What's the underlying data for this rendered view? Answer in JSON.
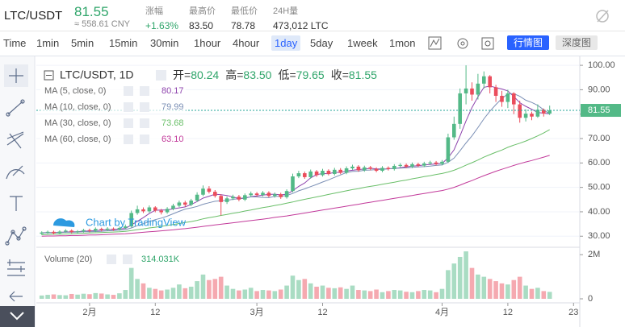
{
  "header": {
    "pair": "LTC/USDT",
    "price": "81.55",
    "cny": "≈ 558.61 CNY",
    "stats": [
      {
        "label": "涨幅",
        "value": "+1.63%"
      },
      {
        "label": "最高价",
        "value": "83.50"
      },
      {
        "label": "最低价",
        "value": "78.78"
      },
      {
        "label": "24H量",
        "value": "473,012 LTC"
      }
    ]
  },
  "toolbar": {
    "intervals": [
      "Time",
      "1min",
      "5min",
      "15min",
      "30min",
      "1hour",
      "4hour",
      "1day",
      "5day",
      "1week",
      "1mon"
    ],
    "tabs": [
      "行情图",
      "深度图"
    ]
  },
  "legend": {
    "symbol": "LTC/USDT, 1D",
    "ohlc": [
      {
        "label": "开=",
        "value": "80.24"
      },
      {
        "label": "高=",
        "value": "83.50"
      },
      {
        "label": "低=",
        "value": "79.65"
      },
      {
        "label": "收=",
        "value": "81.55"
      }
    ]
  },
  "watermark": "Chart by TradingView",
  "chart_data": {
    "type": "candlestick",
    "categories": [
      null,
      null,
      null,
      null,
      null,
      null,
      null,
      null,
      "2月",
      null,
      null,
      null,
      null,
      null,
      null,
      null,
      null,
      null,
      null,
      "12",
      null,
      null,
      null,
      null,
      null,
      null,
      null,
      null,
      null,
      null,
      null,
      null,
      null,
      null,
      null,
      null,
      "3月",
      null,
      null,
      null,
      null,
      null,
      null,
      null,
      null,
      null,
      null,
      "12",
      null,
      null,
      null,
      null,
      null,
      null,
      null,
      null,
      null,
      null,
      null,
      null,
      null,
      null,
      null,
      null,
      null,
      null,
      null,
      "4月",
      null,
      null,
      null,
      null,
      null,
      null,
      null,
      null,
      null,
      null,
      "12",
      null,
      null,
      null,
      null,
      null,
      null,
      null,
      null,
      null,
      null,
      "23"
    ],
    "open": [
      31.0,
      31.5,
      31.8,
      31.2,
      31.9,
      32.3,
      31.7,
      32.0,
      32.5,
      32.2,
      33.0,
      32.6,
      33.1,
      32.8,
      33.4,
      34.0,
      39.5,
      41.0,
      40.2,
      41.8,
      40.5,
      39.8,
      41.2,
      42.5,
      43.8,
      42.9,
      44.6,
      47.0,
      49.5,
      48.2,
      46.5,
      44.0,
      45.5,
      46.2,
      45.0,
      46.8,
      47.5,
      46.9,
      47.8,
      46.5,
      47.2,
      46.0,
      48.5,
      54.5,
      55.8,
      54.2,
      56.5,
      55.0,
      56.8,
      55.5,
      57.2,
      56.0,
      57.8,
      58.5,
      57.0,
      58.2,
      57.6,
      56.8,
      58.0,
      57.5,
      58.8,
      59.2,
      58.5,
      59.5,
      58.9,
      59.8,
      60.2,
      59.6,
      60.5,
      70.5,
      76.0,
      88.5,
      90.5,
      88.0,
      92.5,
      95.5,
      91.0,
      87.5,
      85.0,
      88.5,
      84.0,
      78.5,
      80.2,
      79.0,
      81.8,
      80.24,
      null,
      null,
      null,
      null
    ],
    "high": [
      32.0,
      32.3,
      32.3,
      32.4,
      32.9,
      32.8,
      32.5,
      33.0,
      33.1,
      33.6,
      33.5,
      33.7,
      33.6,
      34.0,
      34.8,
      40.5,
      42.5,
      41.8,
      42.6,
      42.3,
      41.2,
      41.9,
      43.3,
      44.6,
      44.5,
      45.3,
      48.0,
      50.8,
      50.5,
      48.9,
      47.2,
      46.3,
      47.0,
      46.9,
      47.5,
      48.3,
      48.1,
      48.5,
      48.4,
      47.9,
      47.8,
      49.2,
      55.6,
      56.8,
      56.5,
      57.3,
      57.1,
      57.6,
      57.4,
      58.0,
      57.9,
      58.6,
      59.3,
      59.1,
      58.9,
      58.8,
      58.2,
      58.7,
      58.6,
      59.5,
      59.9,
      59.8,
      60.2,
      60.1,
      60.5,
      60.9,
      60.8,
      61.2,
      72.0,
      79.0,
      90.5,
      100.0,
      93.0,
      96.5,
      97.5,
      96.0,
      92.0,
      89.5,
      90.0,
      89.0,
      85.5,
      82.0,
      81.0,
      84.0,
      82.3,
      83.5,
      null,
      null,
      null,
      null
    ],
    "low": [
      30.5,
      31.0,
      30.7,
      30.8,
      31.4,
      31.2,
      31.1,
      31.5,
      31.6,
      31.7,
      32.0,
      32.1,
      32.2,
      32.3,
      33.0,
      33.6,
      38.8,
      39.5,
      39.6,
      39.8,
      38.9,
      39.2,
      40.6,
      41.9,
      42.1,
      42.3,
      44.0,
      46.4,
      47.5,
      45.8,
      38.5,
      43.2,
      44.8,
      44.3,
      44.4,
      46.1,
      46.2,
      46.3,
      45.9,
      45.8,
      45.3,
      45.4,
      48.0,
      53.8,
      53.5,
      53.6,
      54.3,
      54.4,
      54.9,
      54.9,
      55.4,
      55.4,
      57.2,
      56.4,
      56.4,
      57.0,
      56.2,
      56.2,
      56.9,
      56.9,
      58.2,
      57.9,
      57.9,
      58.3,
      58.3,
      59.2,
      59.0,
      59.0,
      60.0,
      69.5,
      74.0,
      84.0,
      85.5,
      86.0,
      90.5,
      88.5,
      85.0,
      83.0,
      82.5,
      80.0,
      76.5,
      77.0,
      77.5,
      78.5,
      79.0,
      79.65,
      null,
      null,
      null,
      null
    ],
    "close": [
      31.5,
      31.8,
      31.2,
      31.9,
      32.3,
      31.7,
      32.0,
      32.5,
      32.2,
      33.0,
      32.6,
      33.1,
      32.8,
      33.4,
      34.0,
      39.5,
      41.0,
      40.2,
      41.8,
      40.5,
      39.8,
      41.2,
      42.5,
      43.8,
      42.9,
      44.6,
      47.0,
      49.5,
      48.2,
      46.5,
      44.0,
      45.5,
      46.2,
      45.0,
      46.8,
      47.5,
      46.9,
      47.8,
      46.5,
      47.2,
      46.0,
      48.5,
      54.5,
      55.8,
      54.2,
      56.5,
      55.0,
      56.8,
      55.5,
      57.2,
      56.0,
      57.8,
      58.5,
      57.0,
      58.2,
      57.6,
      56.8,
      58.0,
      57.5,
      58.8,
      59.2,
      58.5,
      59.5,
      58.9,
      59.8,
      60.2,
      59.6,
      60.5,
      70.5,
      76.0,
      88.5,
      90.5,
      88.0,
      92.5,
      95.5,
      91.0,
      87.5,
      85.0,
      88.5,
      84.0,
      78.5,
      80.2,
      79.0,
      81.8,
      80.24,
      81.55,
      null,
      null,
      null,
      null
    ],
    "up_color": "#53b987",
    "down_color": "#eb4d5c",
    "ylim": [
      25.8,
      103
    ],
    "yticks": [
      {
        "value": 30,
        "label": "30.00"
      },
      {
        "value": 40,
        "label": "40.00"
      },
      {
        "value": 50,
        "label": "50.00"
      },
      {
        "value": 60,
        "label": "60.00"
      },
      {
        "value": 70,
        "label": "70.00"
      },
      {
        "value": 80,
        "label": "80.00"
      },
      {
        "value": 90,
        "label": "90.00"
      },
      {
        "value": 100,
        "label": "100.00"
      }
    ],
    "grid": true,
    "ma": [
      {
        "name": "MA (5, close, 0)",
        "color": "#8e44ad",
        "last_label": "80.17",
        "values": [
          31.4,
          31.5,
          31.5,
          31.6,
          31.7,
          31.8,
          31.8,
          32.1,
          32.1,
          32.3,
          32.5,
          32.7,
          32.7,
          33.0,
          33.2,
          34.6,
          36.1,
          37.6,
          39.3,
          40.6,
          40.7,
          40.7,
          41.2,
          41.6,
          42.0,
          43.0,
          44.2,
          45.6,
          46.4,
          47.2,
          47.0,
          46.7,
          46.1,
          45.4,
          45.5,
          46.2,
          46.5,
          46.8,
          47.1,
          47.2,
          46.9,
          47.2,
          48.6,
          50.4,
          51.8,
          53.9,
          55.2,
          55.7,
          55.6,
          56.2,
          56.1,
          56.7,
          57.0,
          57.3,
          57.5,
          57.8,
          57.6,
          57.5,
          57.6,
          57.7,
          58.1,
          58.4,
          58.7,
          58.9,
          59.2,
          59.4,
          59.6,
          59.8,
          62.1,
          65.4,
          71.1,
          77.2,
          82.7,
          87.1,
          91.0,
          91.5,
          90.9,
          90.3,
          89.5,
          87.2,
          84.7,
          83.2,
          82.0,
          80.7,
          80.4,
          80.17,
          null,
          null,
          null,
          null
        ]
      },
      {
        "name": "MA (10, close, 0)",
        "color": "#7b8fb5",
        "last_label": "79.99",
        "values": [
          31.3,
          31.4,
          31.4,
          31.5,
          31.6,
          31.6,
          31.7,
          31.8,
          31.8,
          31.9,
          32.0,
          32.2,
          32.3,
          32.5,
          32.7,
          33.4,
          34.3,
          35.1,
          36.0,
          36.8,
          37.4,
          38.2,
          39.2,
          40.2,
          41.1,
          41.6,
          42.2,
          43.1,
          43.7,
          44.3,
          44.5,
          44.7,
          45.1,
          45.4,
          45.8,
          46.1,
          46.1,
          45.9,
          45.8,
          46.3,
          46.4,
          46.7,
          47.5,
          48.6,
          49.4,
          50.3,
          51.2,
          52.2,
          53.1,
          54.1,
          55.1,
          56.1,
          56.5,
          56.6,
          57.0,
          57.1,
          57.3,
          57.4,
          57.6,
          57.8,
          57.9,
          58.0,
          58.2,
          58.4,
          58.5,
          58.7,
          59.0,
          59.2,
          60.3,
          62.0,
          65.0,
          68.2,
          71.1,
          74.5,
          78.1,
          81.2,
          83.9,
          86.4,
          88.3,
          88.4,
          87.3,
          85.7,
          84.8,
          83.6,
          81.8,
          79.99,
          null,
          null,
          null,
          null
        ]
      },
      {
        "name": "MA (30, close, 0)",
        "color": "#6abf69",
        "last_label": "73.68",
        "values": [
          30.6,
          30.7,
          30.8,
          30.8,
          30.9,
          31.0,
          31.1,
          31.2,
          31.3,
          31.4,
          31.5,
          31.6,
          31.7,
          31.8,
          32.0,
          32.3,
          32.7,
          33.0,
          33.4,
          33.7,
          34.0,
          34.4,
          34.8,
          35.2,
          35.6,
          36.0,
          36.5,
          37.1,
          37.6,
          38.0,
          38.5,
          38.9,
          39.4,
          39.8,
          40.3,
          40.7,
          41.2,
          41.7,
          42.1,
          42.6,
          43.0,
          43.5,
          44.0,
          44.6,
          45.1,
          45.6,
          46.1,
          46.6,
          47.1,
          47.6,
          48.1,
          48.6,
          49.1,
          49.5,
          50.0,
          50.4,
          50.8,
          51.3,
          51.7,
          52.1,
          52.6,
          53.0,
          53.5,
          53.9,
          54.4,
          54.8,
          55.3,
          55.7,
          56.3,
          57.0,
          58.0,
          59.1,
          60.1,
          61.2,
          62.4,
          63.4,
          64.4,
          65.3,
          66.4,
          67.3,
          68.1,
          69.0,
          70.0,
          71.1,
          72.3,
          73.68,
          null,
          null,
          null,
          null
        ]
      },
      {
        "name": "MA (60, close, 0)",
        "color": "#c2399a",
        "last_label": "63.10",
        "values": [
          30.0,
          30.1,
          30.1,
          30.2,
          30.2,
          30.3,
          30.3,
          30.4,
          30.5,
          30.5,
          30.6,
          30.7,
          30.8,
          30.9,
          31.0,
          31.2,
          31.4,
          31.6,
          31.8,
          32.0,
          32.2,
          32.4,
          32.6,
          32.9,
          33.1,
          33.4,
          33.7,
          34.0,
          34.3,
          34.6,
          34.9,
          35.2,
          35.5,
          35.8,
          36.1,
          36.4,
          36.7,
          37.0,
          37.3,
          37.7,
          38.0,
          38.3,
          38.7,
          39.1,
          39.5,
          39.9,
          40.3,
          40.7,
          41.1,
          41.5,
          41.9,
          42.3,
          42.7,
          43.1,
          43.5,
          43.9,
          44.3,
          44.7,
          45.1,
          45.5,
          45.9,
          46.3,
          46.7,
          47.1,
          47.5,
          47.9,
          48.3,
          48.7,
          49.3,
          50.0,
          50.9,
          51.9,
          52.8,
          53.8,
          54.8,
          55.7,
          56.6,
          57.4,
          58.2,
          59.0,
          59.7,
          60.4,
          61.0,
          61.7,
          62.4,
          63.1,
          null,
          null,
          null,
          null
        ]
      }
    ],
    "volume": {
      "name": "Volume (20)",
      "last_label": "314.031K",
      "up_color": "#a9dcc3",
      "down_color": "#f5a9b0",
      "ylim": [
        0,
        2300000
      ],
      "yticks": [
        0,
        {
          "value": 2000000,
          "label": "2M"
        }
      ],
      "values": [
        150000,
        180000,
        200000,
        170000,
        160000,
        220000,
        190000,
        230000,
        210000,
        260000,
        240000,
        200000,
        180000,
        250000,
        400000,
        1400000,
        900000,
        700000,
        500000,
        450000,
        380000,
        420000,
        500000,
        650000,
        480000,
        550000,
        800000,
        1100000,
        850000,
        900000,
        1000000,
        600000,
        450000,
        380000,
        420000,
        500000,
        350000,
        400000,
        380000,
        350000,
        420000,
        600000,
        1050000,
        850000,
        900000,
        700000,
        550000,
        600000,
        500000,
        480000,
        520000,
        450000,
        600000,
        400000,
        380000,
        350000,
        420000,
        300000,
        350000,
        400000,
        380000,
        320000,
        300000,
        350000,
        400000,
        380000,
        300000,
        450000,
        1300000,
        1600000,
        1900000,
        2150000,
        1400000,
        1100000,
        1000000,
        900000,
        800000,
        700000,
        650000,
        850000,
        1000000,
        600000,
        450000,
        500000,
        350000,
        314031,
        null,
        null,
        null,
        null
      ]
    }
  }
}
